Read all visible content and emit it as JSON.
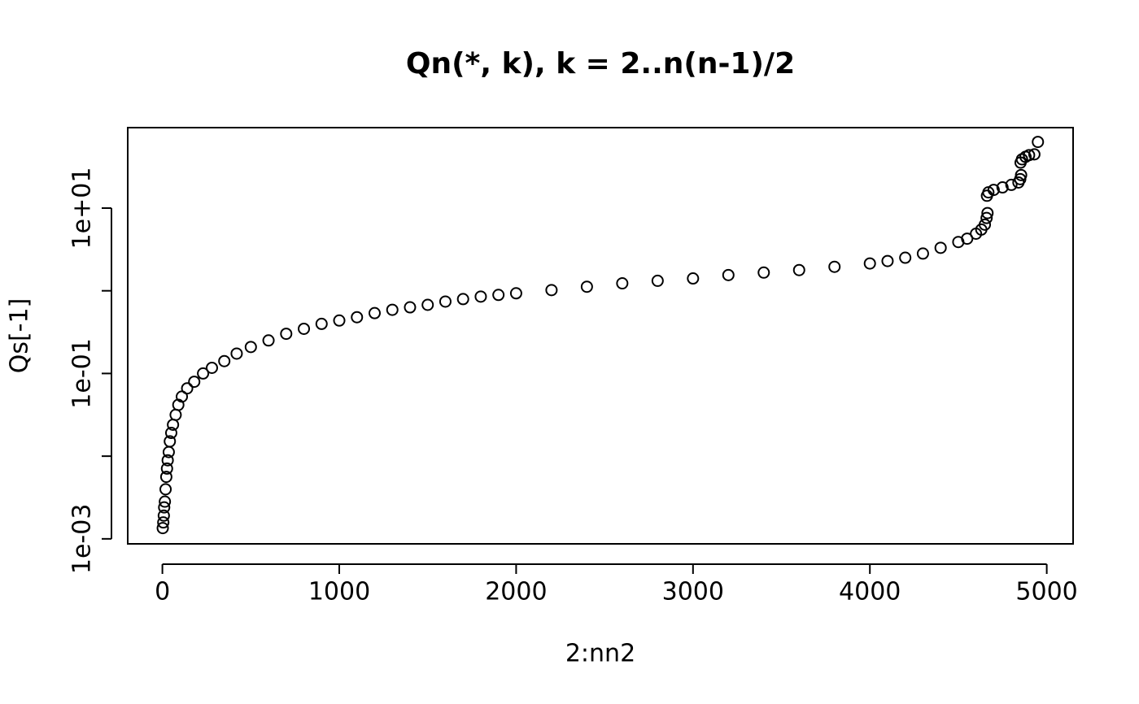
{
  "chart_data": {
    "type": "scatter",
    "title": "Qn(*, k),  k = 2..n(n-1)/2",
    "x_label": "2:nn2",
    "y_label": "Qs[-1]",
    "log_y": true,
    "color": "#000000",
    "xlim": [
      -196,
      5149
    ],
    "ylim": [
      0.00087,
      94
    ],
    "xticks": [
      0,
      1000,
      2000,
      3000,
      4000,
      5000
    ],
    "yticks": [
      {
        "value": 0.001,
        "label": "1e-03"
      },
      {
        "value": 0.01,
        "label": null
      },
      {
        "value": 0.1,
        "label": "1e-01"
      },
      {
        "value": 1,
        "label": null
      },
      {
        "value": 10,
        "label": "1e+01"
      }
    ],
    "x": [
      2,
      5,
      8,
      10,
      14,
      18,
      22,
      26,
      30,
      36,
      42,
      50,
      60,
      75,
      90,
      110,
      140,
      180,
      230,
      280,
      350,
      420,
      500,
      600,
      700,
      800,
      900,
      1000,
      1100,
      1200,
      1300,
      1400,
      1500,
      1600,
      1700,
      1800,
      1900,
      2000,
      2200,
      2400,
      2600,
      2800,
      3000,
      3200,
      3400,
      3600,
      3800,
      4000,
      4100,
      4200,
      4300,
      4400,
      4500,
      4550,
      4600,
      4630,
      4650,
      4660,
      4665,
      4662,
      4670,
      4700,
      4750,
      4800,
      4840,
      4850,
      4855,
      4852,
      4860,
      4880,
      4900,
      4930,
      4950
    ],
    "values": [
      0.00135,
      0.00158,
      0.00191,
      0.0024,
      0.00282,
      0.00398,
      0.00562,
      0.00708,
      0.00891,
      0.0112,
      0.0151,
      0.0191,
      0.024,
      0.0316,
      0.0417,
      0.0525,
      0.0661,
      0.0794,
      0.1,
      0.117,
      0.141,
      0.174,
      0.209,
      0.251,
      0.302,
      0.347,
      0.398,
      0.437,
      0.479,
      0.537,
      0.589,
      0.631,
      0.676,
      0.741,
      0.794,
      0.851,
      0.891,
      0.933,
      1.02,
      1.12,
      1.23,
      1.32,
      1.41,
      1.55,
      1.66,
      1.78,
      1.95,
      2.14,
      2.29,
      2.51,
      2.82,
      3.31,
      3.89,
      4.27,
      4.9,
      5.5,
      6.31,
      7.59,
      8.71,
      14.1,
      15.5,
      16.6,
      17.8,
      19.1,
      20.4,
      22.4,
      25.1,
      35.5,
      38.9,
      41.7,
      43.7,
      44.7,
      63.1
    ]
  }
}
